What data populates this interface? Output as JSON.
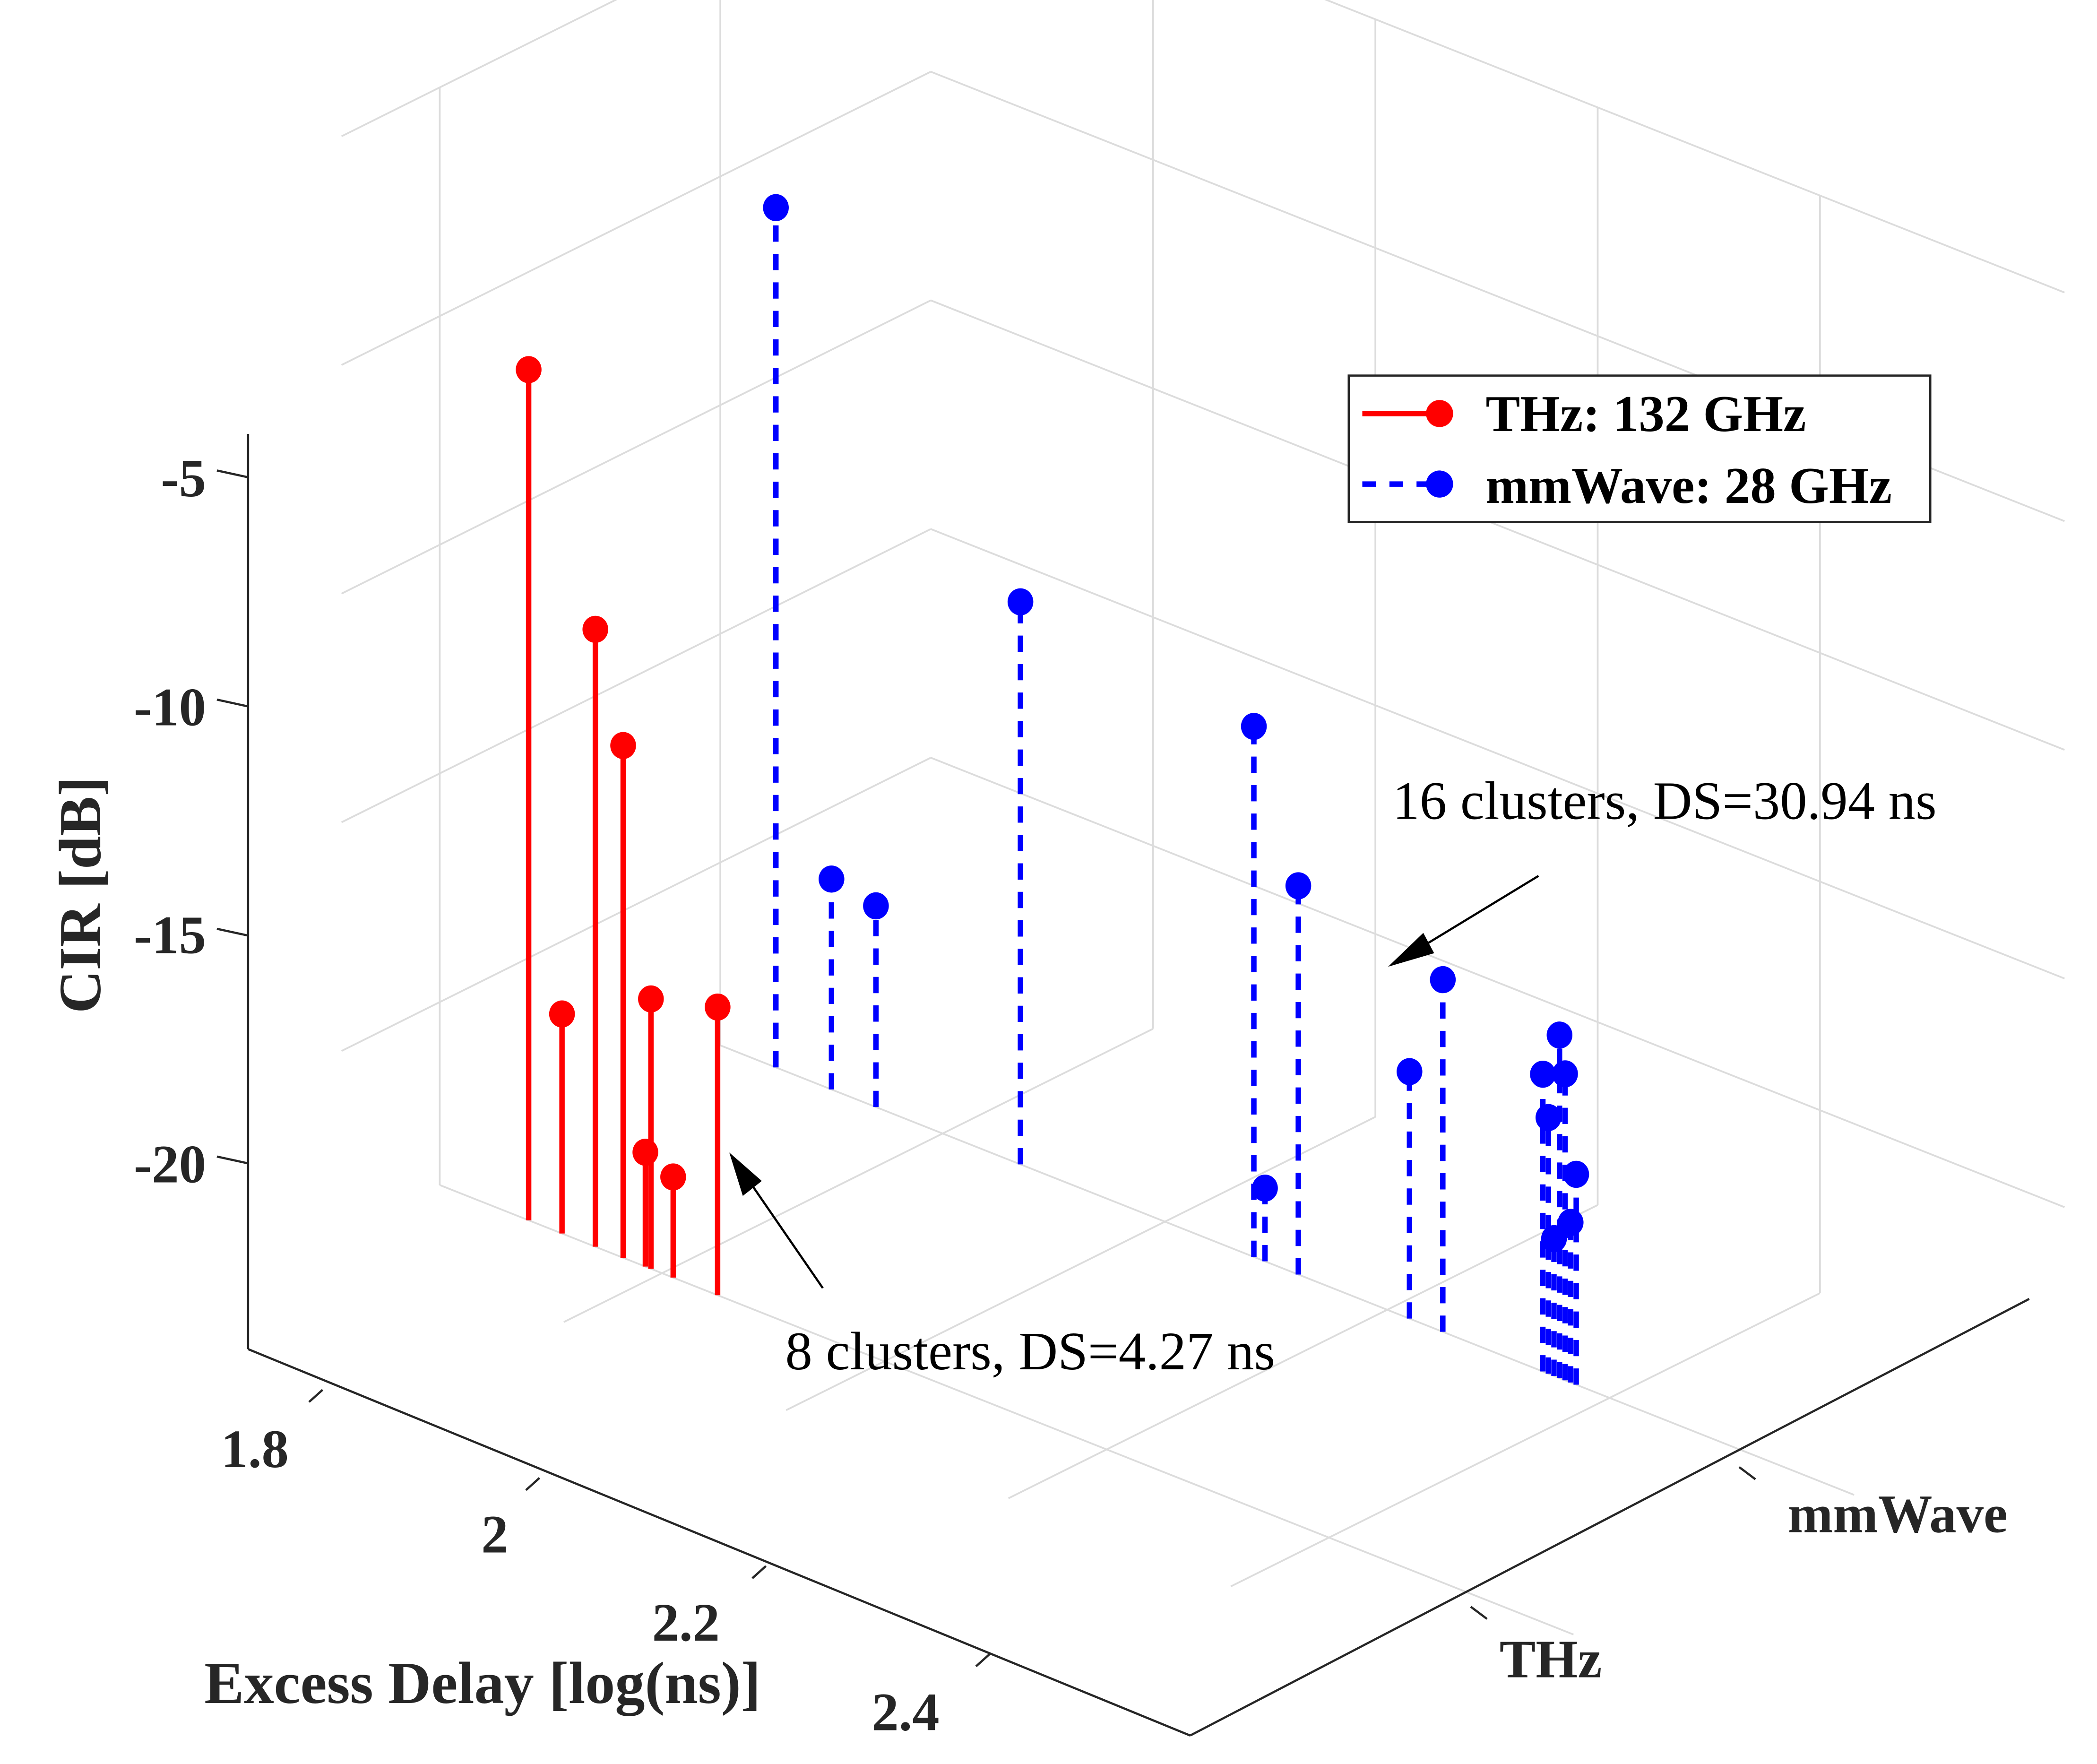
{
  "chart_data": {
    "type": "stem3",
    "title": "",
    "xlabel": "Excess Delay [log(ns)]",
    "ylabel": "",
    "zlabel": "CIR [dB]",
    "x_ticks": [
      "1.8",
      "2",
      "2.2",
      "2.4"
    ],
    "x_tick_values": [
      1.8,
      2.0,
      2.2,
      2.4
    ],
    "y_ticks": [
      "THz",
      "mmWave"
    ],
    "z_ticks": [
      "-5",
      "-10",
      "-15",
      "-20"
    ],
    "z_tick_values": [
      -5,
      -10,
      -15,
      -20
    ],
    "xlim": [
      1.6,
      2.5
    ],
    "zlim": [
      -24,
      0
    ],
    "grid": true,
    "legend_position": "top-right",
    "series": [
      {
        "name": "THz: 132 GHz",
        "band": "THz",
        "color": "#ff0000",
        "line_style": "solid",
        "marker": "filled-circle",
        "x": [
          1.68,
          1.71,
          1.74,
          1.765,
          1.785,
          1.79,
          1.81,
          1.85
        ],
        "z": [
          -5.4,
          -19.2,
          -10.5,
          -12.8,
          -21.5,
          -18.1,
          -21.8,
          -17.7
        ]
      },
      {
        "name": "mmWave: 28 GHz",
        "band": "mmWave",
        "color": "#0000ff",
        "line_style": "dashed",
        "marker": "filled-circle",
        "x": [
          1.65,
          1.7,
          1.74,
          1.87,
          2.08,
          2.09,
          2.12,
          2.22,
          2.25,
          2.34,
          2.345,
          2.355,
          2.36,
          2.37,
          2.35,
          2.365
        ],
        "z": [
          -5.2,
          -19.4,
          -19.6,
          -11.7,
          -12.4,
          -22.4,
          -15.5,
          -18.6,
          -16.3,
          -17.5,
          -18.4,
          -16.5,
          -17.3,
          -19.4,
          -21.0,
          -20.5
        ]
      }
    ],
    "annotations": [
      {
        "text": "8 clusters, DS=4.27 ns",
        "points_to": "THz: 132 GHz"
      },
      {
        "text": "16 clusters, DS=30.94 ns",
        "points_to": "mmWave: 28 GHz"
      }
    ]
  }
}
